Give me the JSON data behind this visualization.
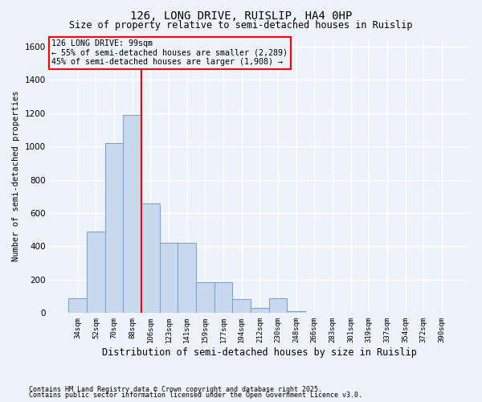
{
  "title": "126, LONG DRIVE, RUISLIP, HA4 0HP",
  "subtitle": "Size of property relative to semi-detached houses in Ruislip",
  "xlabel": "Distribution of semi-detached houses by size in Ruislip",
  "ylabel": "Number of semi-detached properties",
  "categories": [
    "34sqm",
    "52sqm",
    "70sqm",
    "88sqm",
    "106sqm",
    "123sqm",
    "141sqm",
    "159sqm",
    "177sqm",
    "194sqm",
    "212sqm",
    "230sqm",
    "248sqm",
    "266sqm",
    "283sqm",
    "301sqm",
    "319sqm",
    "337sqm",
    "354sqm",
    "372sqm",
    "390sqm"
  ],
  "bar_heights": [
    90,
    490,
    1020,
    1190,
    660,
    420,
    420,
    185,
    185,
    85,
    30,
    90,
    10,
    0,
    0,
    0,
    0,
    0,
    0,
    0,
    0
  ],
  "bar_color": "#c9d9ed",
  "bar_edge_color": "#7ba6d4",
  "vline_pos": 3.5,
  "vline_color": "red",
  "property_label": "126 LONG DRIVE: 99sqm",
  "annotation_line1": "← 55% of semi-detached houses are smaller (2,289)",
  "annotation_line2": "45% of semi-detached houses are larger (1,908) →",
  "annotation_box_color": "red",
  "ylim": [
    0,
    1650
  ],
  "yticks": [
    0,
    200,
    400,
    600,
    800,
    1000,
    1200,
    1400,
    1600
  ],
  "footnote1": "Contains HM Land Registry data © Crown copyright and database right 2025.",
  "footnote2": "Contains public sector information licensed under the Open Government Licence v3.0.",
  "bg_color": "#eef2fb",
  "grid_color": "white"
}
